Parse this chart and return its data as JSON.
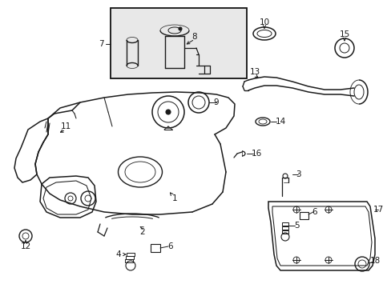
{
  "background_color": "#ffffff",
  "line_color": "#1a1a1a",
  "figsize": [
    4.89,
    3.6
  ],
  "dpi": 100,
  "label_fontsize": 7.5
}
